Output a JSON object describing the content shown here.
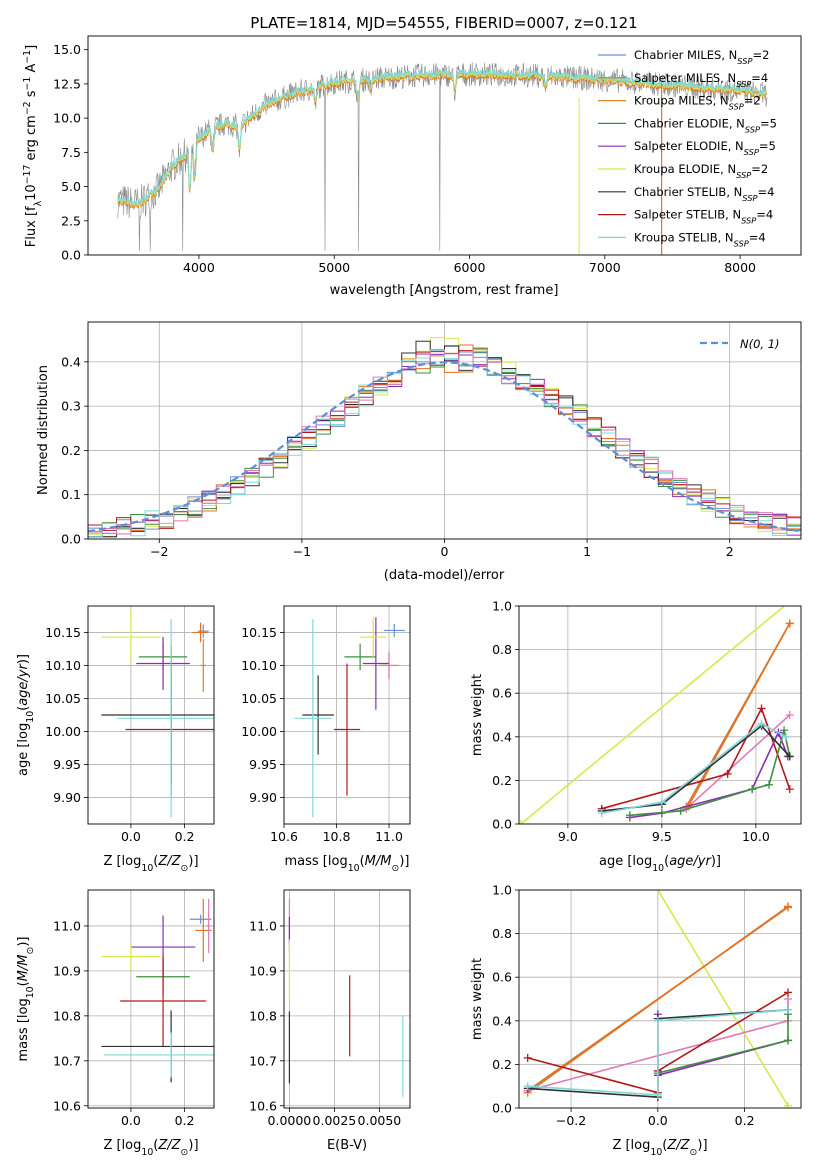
{
  "colors": {
    "Chabrier MILES": "#6a8fd6",
    "Salpeter MILES": "#e8711f",
    "Kroupa MILES": "#d48a26",
    "Chabrier ELODIE": "#3f8f3f",
    "Salpeter ELODIE": "#8a2db5",
    "Kroupa ELODIE": "#d8e84a",
    "Chabrier STELIB": "#333333",
    "Salpeter STELIB": "#b21a1a",
    "Kroupa STELIB": "#7fd8d8",
    "extra_pink": "#e07ab8",
    "extra_orange": "#c87e3c",
    "gauss": "#5b8fd8"
  },
  "chart_data": [
    {
      "id": "spectrum",
      "type": "line",
      "title": "PLATE=1814, MJD=54555, FIBERID=0007, z=0.121",
      "xlabel": "wavelength [Angstrom, rest frame]",
      "ylabel": "Flux [f_λ 10^-17 erg cm^-2 s^-1 A^-1]",
      "xlim": [
        3180,
        8450
      ],
      "ylim": [
        0,
        16
      ],
      "xticks": [
        4000,
        5000,
        6000,
        7000,
        8000
      ],
      "yticks": [
        0.0,
        2.5,
        5.0,
        7.5,
        10.0,
        12.5,
        15.0
      ],
      "xtick_labels": [
        "4000",
        "5000",
        "6000",
        "7000",
        "8000"
      ],
      "ytick_labels": [
        "0.0",
        "2.5",
        "5.0",
        "7.5",
        "10.0",
        "12.5",
        "15.0"
      ],
      "data_color": "#888888",
      "model_color": "#7fd8d8",
      "continuum": {
        "wavelength": [
          3400,
          3550,
          3700,
          3800,
          3900,
          4000,
          4100,
          4200,
          4300,
          4500,
          4700,
          5000,
          5300,
          5600,
          6000,
          6500,
          7000,
          7500,
          8000,
          8200
        ],
        "flux": [
          4.0,
          3.7,
          4.8,
          6.5,
          7.3,
          8.5,
          9.3,
          9.6,
          9.4,
          11.0,
          11.8,
          12.6,
          12.9,
          13.1,
          13.2,
          13.1,
          12.8,
          12.4,
          12.0,
          11.7
        ]
      },
      "legend": [
        "Chabrier MILES, N_SSP=2",
        "Salpeter MILES, N_SSP=4",
        "Kroupa MILES, N_SSP=2",
        "Chabrier ELODIE, N_SSP=5",
        "Salpeter ELODIE, N_SSP=5",
        "Kroupa ELODIE, N_SSP=2",
        "Chabrier STELIB, N_SSP=4",
        "Salpeter STELIB, N_SSP=4",
        "Kroupa STELIB, N_SSP=4"
      ],
      "legend_position": "right",
      "grid": false
    },
    {
      "id": "residuals",
      "type": "histogram",
      "xlabel": "(data-model)/error",
      "ylabel": "Normed distribution",
      "xlim": [
        -2.5,
        2.5
      ],
      "ylim": [
        0,
        0.49
      ],
      "xticks": [
        -2,
        -1,
        0,
        1,
        2
      ],
      "yticks": [
        0.0,
        0.1,
        0.2,
        0.3,
        0.4
      ],
      "xtick_labels": [
        "−2",
        "−1",
        "0",
        "1",
        "2"
      ],
      "ytick_labels": [
        "0.0",
        "0.1",
        "0.2",
        "0.3",
        "0.4"
      ],
      "bin_width": 0.1,
      "legend": [
        "N(0, 1)"
      ],
      "legend_position": "upper right",
      "grid": true
    },
    {
      "id": "age_vs_Z",
      "type": "errorbar",
      "xlabel": "Z [log10(Z/Z⊙)]",
      "ylabel": "age [log10(age/yr)]",
      "xlim": [
        -0.16,
        0.31
      ],
      "ylim": [
        9.86,
        10.19
      ],
      "xticks": [
        0.0,
        0.2
      ],
      "yticks": [
        9.9,
        9.95,
        10.0,
        10.05,
        10.1,
        10.15
      ],
      "xtick_labels": [
        "0.0",
        "0.2"
      ],
      "ytick_labels": [
        "9.90",
        "9.95",
        "10.00",
        "10.05",
        "10.10",
        "10.15"
      ],
      "points": [
        {
          "color": "#6a8fd6",
          "x": 0.27,
          "xerr": 0.02,
          "y": 10.152,
          "yerr": 0.01
        },
        {
          "color": "#e8711f",
          "x": 0.26,
          "xerr": 0.03,
          "y": 10.15,
          "yerr": 0.015
        },
        {
          "color": "#d48a26",
          "x": 0.27,
          "xerr": 0.01,
          "y": 10.1,
          "yerr": 0.04
        },
        {
          "color": "#3f8f3f",
          "x": 0.12,
          "xerr": 0.09,
          "y": 10.113,
          "yerr": 0.02
        },
        {
          "color": "#8a2db5",
          "x": 0.12,
          "xerr": 0.1,
          "y": 10.103,
          "yerr": 0.04
        },
        {
          "color": "#d8e84a",
          "x": 0.0,
          "xerr": 0.11,
          "y": 10.143,
          "yerr": 0.04
        },
        {
          "color": "#333333",
          "x": 0.15,
          "xerr": 0.26,
          "y": 10.025,
          "yerr": 0.105
        },
        {
          "color": "#b21a1a",
          "x": 0.15,
          "xerr": 0.17,
          "y": 10.003,
          "yerr": 0.1
        },
        {
          "color": "#7fd8d8",
          "x": 0.15,
          "xerr": 0.2,
          "y": 10.02,
          "yerr": 0.15
        }
      ],
      "grid": true
    },
    {
      "id": "age_vs_mass",
      "type": "errorbar",
      "xlabel": "mass [log10(M/M⊙)]",
      "ylabel": "",
      "xlim": [
        10.6,
        11.08
      ],
      "ylim": [
        9.86,
        10.19
      ],
      "xticks": [
        10.6,
        10.8,
        11.0
      ],
      "yticks": [
        9.9,
        9.95,
        10.0,
        10.05,
        10.1,
        10.15
      ],
      "xtick_labels": [
        "10.6",
        "10.8",
        "11.0"
      ],
      "ytick_labels": [
        "9.90",
        "9.95",
        "10.00",
        "10.05",
        "10.10",
        "10.15"
      ],
      "points": [
        {
          "color": "#6a8fd6",
          "x": 11.02,
          "xerr": 0.04,
          "y": 10.153,
          "yerr": 0.01
        },
        {
          "color": "#e8711f",
          "x": 11.0,
          "xerr": 0.03,
          "y": 10.1,
          "yerr": 0.02
        },
        {
          "color": "#e07ab8",
          "x": 11.0,
          "xerr": 0.04,
          "y": 10.1,
          "yerr": 0.02
        },
        {
          "color": "#3f8f3f",
          "x": 10.89,
          "xerr": 0.06,
          "y": 10.113,
          "yerr": 0.02
        },
        {
          "color": "#8a2db5",
          "x": 10.95,
          "xerr": 0.05,
          "y": 10.103,
          "yerr": 0.07
        },
        {
          "color": "#d8e84a",
          "x": 10.94,
          "xerr": 0.05,
          "y": 10.143,
          "yerr": 0.03
        },
        {
          "color": "#333333",
          "x": 10.73,
          "xerr": 0.06,
          "y": 10.025,
          "yerr": 0.06
        },
        {
          "color": "#b21a1a",
          "x": 10.84,
          "xerr": 0.05,
          "y": 10.003,
          "yerr": 0.1
        },
        {
          "color": "#7fd8d8",
          "x": 10.71,
          "xerr": 0.07,
          "y": 10.02,
          "yerr": 0.15
        }
      ],
      "grid": true
    },
    {
      "id": "weight_vs_age",
      "type": "line",
      "xlabel": "age [log10(age/yr)]",
      "ylabel": "mass weight",
      "xlim": [
        8.74,
        10.24
      ],
      "ylim": [
        0,
        1
      ],
      "xticks": [
        9.0,
        9.5,
        10.0
      ],
      "yticks": [
        0.0,
        0.2,
        0.4,
        0.6,
        0.8,
        1.0
      ],
      "xtick_labels": [
        "9.0",
        "9.5",
        "10.0"
      ],
      "ytick_labels": [
        "0.0",
        "0.2",
        "0.4",
        "0.6",
        "0.8",
        "1.0"
      ],
      "series": [
        {
          "color": "#d8e84a",
          "x": [
            8.75,
            10.18
          ],
          "y": [
            0.0,
            1.02
          ]
        },
        {
          "color": "#e07ab8",
          "x": [
            9.63,
            10.18
          ],
          "y": [
            0.07,
            0.5
          ]
        },
        {
          "color": "#c87e3c",
          "x": [
            9.63,
            10.18
          ],
          "y": [
            0.08,
            0.92
          ]
        },
        {
          "color": "#e8711f",
          "x": [
            9.64,
            10.18
          ],
          "y": [
            0.08,
            0.92
          ]
        },
        {
          "color": "#b21a1a",
          "x": [
            9.18,
            9.85,
            10.03,
            10.18
          ],
          "y": [
            0.07,
            0.23,
            0.53,
            0.16
          ]
        },
        {
          "color": "#8a2db5",
          "x": [
            9.33,
            9.5,
            9.98,
            10.12,
            10.17
          ],
          "y": [
            0.03,
            0.05,
            0.16,
            0.42,
            0.31
          ]
        },
        {
          "color": "#3f8f3f",
          "x": [
            9.33,
            9.6,
            9.98,
            10.07,
            10.15,
            10.18
          ],
          "y": [
            0.04,
            0.06,
            0.16,
            0.18,
            0.43,
            0.31
          ]
        },
        {
          "color": "#333333",
          "x": [
            9.18,
            9.5,
            10.03,
            10.18
          ],
          "y": [
            0.06,
            0.09,
            0.45,
            0.31
          ]
        },
        {
          "color": "#7fd8d8",
          "x": [
            9.18,
            9.5,
            10.03,
            10.16
          ],
          "y": [
            0.05,
            0.1,
            0.46,
            0.4
          ]
        }
      ],
      "grid": true
    },
    {
      "id": "mass_vs_Z",
      "type": "errorbar",
      "xlabel": "Z [log10(Z/Z⊙)]",
      "ylabel": "mass [log10(M/M⊙)]",
      "xlim": [
        -0.16,
        0.31
      ],
      "ylim": [
        10.595,
        11.08
      ],
      "xticks": [
        0.0,
        0.2
      ],
      "yticks": [
        10.6,
        10.7,
        10.8,
        10.9,
        11.0
      ],
      "xtick_labels": [
        "0.0",
        "0.2"
      ],
      "ytick_labels": [
        "10.6",
        "10.7",
        "10.8",
        "10.9",
        "11.0"
      ],
      "points": [
        {
          "color": "#6a8fd6",
          "x": 0.26,
          "xerr": 0.04,
          "y": 11.015,
          "yerr": 0.01
        },
        {
          "color": "#e8711f",
          "x": 0.27,
          "xerr": 0.03,
          "y": 10.99,
          "yerr": 0.07
        },
        {
          "color": "#e07ab8",
          "x": 0.29,
          "xerr": 0.01,
          "y": 11.0,
          "yerr": 0.06
        },
        {
          "color": "#8a2db5",
          "x": 0.12,
          "xerr": 0.12,
          "y": 10.953,
          "yerr": 0.07
        },
        {
          "color": "#d8e84a",
          "x": 0.0,
          "xerr": 0.11,
          "y": 10.932,
          "yerr": 0.03
        },
        {
          "color": "#3f8f3f",
          "x": 0.12,
          "xerr": 0.1,
          "y": 10.887,
          "yerr": 0.04
        },
        {
          "color": "#b21a1a",
          "x": 0.12,
          "xerr": 0.16,
          "y": 10.833,
          "yerr": 0.1
        },
        {
          "color": "#333333",
          "x": 0.15,
          "xerr": 0.26,
          "y": 10.732,
          "yerr": 0.08
        },
        {
          "color": "#7fd8d8",
          "x": 0.15,
          "xerr": 0.25,
          "y": 10.713,
          "yerr": 0.05
        }
      ],
      "grid": true
    },
    {
      "id": "mass_vs_ebv",
      "type": "errorbar",
      "xlabel": "E(B-V)",
      "ylabel": "",
      "xlim": [
        -0.0003,
        0.0067
      ],
      "ylim": [
        10.595,
        11.08
      ],
      "xticks": [
        0.0,
        0.0025,
        0.005
      ],
      "yticks": [
        10.6,
        10.7,
        10.8,
        10.9,
        11.0
      ],
      "xtick_labels": [
        "0.0000",
        "0.0025",
        "0.0050"
      ],
      "ytick_labels": [
        "10.6",
        "10.7",
        "10.8",
        "10.9",
        "11.0"
      ],
      "points": [
        {
          "color": "#e07ab8",
          "x": 0.0,
          "xerr": 0,
          "y": 11.0,
          "yerr": 0.06
        },
        {
          "color": "#8a2db5",
          "x": 0.0,
          "xerr": 0,
          "y": 10.99,
          "yerr": 0.03
        },
        {
          "color": "#d8e84a",
          "x": 0.0,
          "xerr": 0,
          "y": 10.9,
          "yerr": 0.07
        },
        {
          "color": "#333333",
          "x": 0.0,
          "xerr": 0,
          "y": 10.73,
          "yerr": 0.08
        },
        {
          "color": "#b21a1a",
          "x": 0.00335,
          "xerr": 0,
          "y": 10.8,
          "yerr": 0.09
        },
        {
          "color": "#7fd8d8",
          "x": 0.0063,
          "xerr": 0,
          "y": 10.71,
          "yerr": 0.09
        }
      ],
      "grid": true
    },
    {
      "id": "weight_vs_Z",
      "type": "line",
      "xlabel": "Z [log10(Z/Z⊙)]",
      "ylabel": "mass weight",
      "xlim": [
        -0.32,
        0.33
      ],
      "ylim": [
        0,
        1
      ],
      "xticks": [
        -0.2,
        0.0,
        0.2
      ],
      "yticks": [
        0.0,
        0.2,
        0.4,
        0.6,
        0.8,
        1.0
      ],
      "xtick_labels": [
        "−0.2",
        "0.0",
        "0.2"
      ],
      "ytick_labels": [
        "0.0",
        "0.2",
        "0.4",
        "0.6",
        "0.8",
        "1.0"
      ],
      "series": [
        {
          "color": "#d8e84a",
          "x": [
            0.0,
            0.3
          ],
          "y": [
            1.0,
            0.01
          ]
        },
        {
          "color": "#c87e3c",
          "x": [
            -0.3,
            0.3
          ],
          "y": [
            0.08,
            0.92
          ]
        },
        {
          "color": "#e8711f",
          "x": [
            -0.3,
            0.3
          ],
          "y": [
            0.07,
            0.925
          ]
        },
        {
          "color": "#e07ab8",
          "x": [
            -0.3,
            0.3,
            0.3
          ],
          "y": [
            0.08,
            0.4,
            0.5
          ]
        },
        {
          "color": "#b21a1a",
          "x": [
            -0.3,
            0.0,
            0.0,
            0.3
          ],
          "y": [
            0.23,
            0.07,
            0.17,
            0.53
          ]
        },
        {
          "color": "#8a2db5",
          "x": [
            0.0,
            0.0,
            0.3
          ],
          "y": [
            0.43,
            0.15,
            0.31
          ]
        },
        {
          "color": "#3f8f3f",
          "x": [
            0.0,
            0.3,
            0.3
          ],
          "y": [
            0.16,
            0.31,
            0.43
          ]
        },
        {
          "color": "#333333",
          "x": [
            -0.3,
            0.0,
            0.0,
            0.3
          ],
          "y": [
            0.09,
            0.05,
            0.41,
            0.45
          ]
        },
        {
          "color": "#7fd8d8",
          "x": [
            -0.3,
            0.0,
            0.0,
            0.3
          ],
          "y": [
            0.1,
            0.06,
            0.4,
            0.45
          ]
        }
      ],
      "grid": true
    }
  ]
}
